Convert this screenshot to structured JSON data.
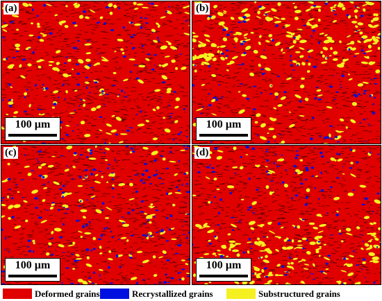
{
  "panels": [
    {
      "label": "(a)",
      "scale_text": "100 µm"
    },
    {
      "label": "(b)",
      "scale_text": "100 µm"
    },
    {
      "label": "(c)",
      "scale_text": "100 µm"
    },
    {
      "label": "(d)",
      "scale_text": "100 µm"
    }
  ],
  "legend": [
    {
      "label": "Deformed grains",
      "color": "#e00000"
    },
    {
      "label": "Recrystallized grains",
      "color": "#0010e0"
    },
    {
      "label": "Substructured grains",
      "color": "#f5f020"
    }
  ],
  "colors": {
    "deformed": "#e00000",
    "recrystallized": "#0010e0",
    "substructured": "#f5f020",
    "boundary": "#000000"
  }
}
